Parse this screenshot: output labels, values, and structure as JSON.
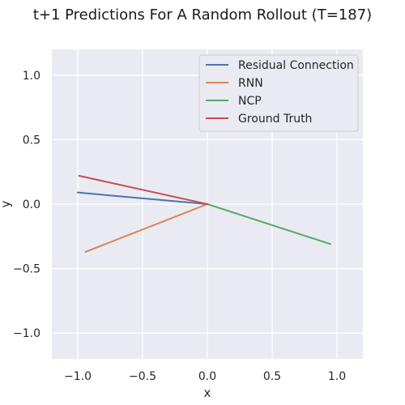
{
  "chart_data": {
    "type": "line",
    "title": "t+1 Predictions For A Random Rollout (T=187)",
    "xlabel": "x",
    "ylabel": "y",
    "xlim": [
      -1.2,
      1.2
    ],
    "ylim": [
      -1.2,
      1.2
    ],
    "xticks": [
      -1.0,
      -0.5,
      0.0,
      0.5,
      1.0
    ],
    "xtick_labels": [
      "−1.0",
      "−0.5",
      "0.0",
      "0.5",
      "1.0"
    ],
    "yticks": [
      1.0,
      0.5,
      0.0,
      -0.5,
      -1.0
    ],
    "ytick_labels": [
      "1.0",
      "0.5",
      "0.0",
      "−0.5",
      "−1.0"
    ],
    "grid": true,
    "legend_position": "top-right",
    "series": [
      {
        "name": "Residual Connection",
        "color": "#4c72b0",
        "x": [
          -1.0,
          0.0
        ],
        "y": [
          0.09,
          0.0
        ]
      },
      {
        "name": "RNN",
        "color": "#dd8452",
        "x": [
          -0.94,
          0.0
        ],
        "y": [
          -0.37,
          0.0
        ]
      },
      {
        "name": "NCP",
        "color": "#55a868",
        "x": [
          0.0,
          0.95
        ],
        "y": [
          0.0,
          -0.31
        ]
      },
      {
        "name": "Ground Truth",
        "color": "#c44e52",
        "x": [
          -0.99,
          0.0
        ],
        "y": [
          0.22,
          0.0
        ]
      }
    ]
  },
  "colors": {
    "plot_background": "#eaeaf2",
    "grid": "#ffffff"
  }
}
